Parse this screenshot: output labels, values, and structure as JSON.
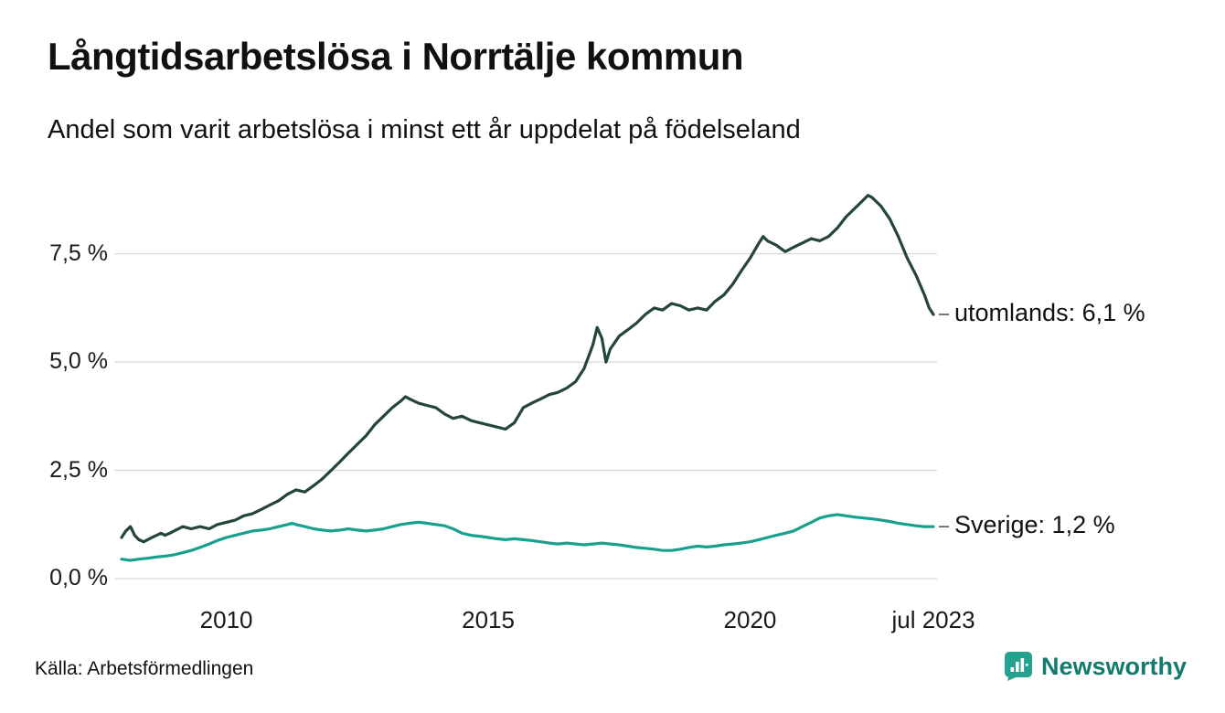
{
  "source": "Källa: Arbetsförmedlingen",
  "brand": {
    "name": "Newsworthy",
    "icon_color": "#25a190",
    "text_color": "#137a6d"
  },
  "chart_data": {
    "type": "line",
    "title": "Långtidsarbetslösa i Norrtälje kommun",
    "subtitle": "Andel som varit arbetslösa i minst ett år uppdelat på födelseland",
    "xlabel": "",
    "ylabel": "",
    "grid": "horizontal",
    "gridline_color": "#d9d9d9",
    "x_range": [
      2008.0,
      2023.5
    ],
    "y_range": [
      0,
      9.35
    ],
    "y_ticks": [
      {
        "label": "0,0 %",
        "value": 0
      },
      {
        "label": "2,5 %",
        "value": 2.5
      },
      {
        "label": "5,0 %",
        "value": 5.0
      },
      {
        "label": "7,5 %",
        "value": 7.5
      }
    ],
    "x_ticks": [
      {
        "label": "2010",
        "value": 2010
      },
      {
        "label": "2015",
        "value": 2015
      },
      {
        "label": "2020",
        "value": 2020
      },
      {
        "label": "jul 2023",
        "value": 2023.5
      }
    ],
    "legend_position": "end-of-line-labels",
    "series": [
      {
        "name": "utomlands",
        "label": "utomlands: 6,1 %",
        "end_value": 6.1,
        "color": "#24453e",
        "points": [
          [
            2008.0,
            0.95
          ],
          [
            2008.08,
            1.1
          ],
          [
            2008.17,
            1.2
          ],
          [
            2008.25,
            1.0
          ],
          [
            2008.33,
            0.9
          ],
          [
            2008.42,
            0.85
          ],
          [
            2008.5,
            0.9
          ],
          [
            2008.58,
            0.95
          ],
          [
            2008.67,
            1.0
          ],
          [
            2008.75,
            1.05
          ],
          [
            2008.83,
            1.0
          ],
          [
            2008.92,
            1.05
          ],
          [
            2009.0,
            1.1
          ],
          [
            2009.17,
            1.2
          ],
          [
            2009.33,
            1.15
          ],
          [
            2009.5,
            1.2
          ],
          [
            2009.67,
            1.15
          ],
          [
            2009.83,
            1.25
          ],
          [
            2010.0,
            1.3
          ],
          [
            2010.17,
            1.35
          ],
          [
            2010.33,
            1.45
          ],
          [
            2010.5,
            1.5
          ],
          [
            2010.67,
            1.6
          ],
          [
            2010.83,
            1.7
          ],
          [
            2011.0,
            1.8
          ],
          [
            2011.17,
            1.95
          ],
          [
            2011.33,
            2.05
          ],
          [
            2011.5,
            2.0
          ],
          [
            2011.67,
            2.15
          ],
          [
            2011.83,
            2.3
          ],
          [
            2012.0,
            2.5
          ],
          [
            2012.17,
            2.7
          ],
          [
            2012.33,
            2.9
          ],
          [
            2012.5,
            3.1
          ],
          [
            2012.67,
            3.3
          ],
          [
            2012.83,
            3.55
          ],
          [
            2013.0,
            3.75
          ],
          [
            2013.17,
            3.95
          ],
          [
            2013.33,
            4.1
          ],
          [
            2013.42,
            4.2
          ],
          [
            2013.5,
            4.15
          ],
          [
            2013.67,
            4.05
          ],
          [
            2013.83,
            4.0
          ],
          [
            2014.0,
            3.95
          ],
          [
            2014.17,
            3.8
          ],
          [
            2014.33,
            3.7
          ],
          [
            2014.5,
            3.75
          ],
          [
            2014.67,
            3.65
          ],
          [
            2014.83,
            3.6
          ],
          [
            2015.0,
            3.55
          ],
          [
            2015.17,
            3.5
          ],
          [
            2015.33,
            3.45
          ],
          [
            2015.5,
            3.6
          ],
          [
            2015.67,
            3.95
          ],
          [
            2015.83,
            4.05
          ],
          [
            2016.0,
            4.15
          ],
          [
            2016.17,
            4.25
          ],
          [
            2016.33,
            4.3
          ],
          [
            2016.5,
            4.4
          ],
          [
            2016.67,
            4.55
          ],
          [
            2016.83,
            4.85
          ],
          [
            2017.0,
            5.4
          ],
          [
            2017.08,
            5.8
          ],
          [
            2017.17,
            5.55
          ],
          [
            2017.25,
            5.0
          ],
          [
            2017.33,
            5.3
          ],
          [
            2017.5,
            5.6
          ],
          [
            2017.67,
            5.75
          ],
          [
            2017.83,
            5.9
          ],
          [
            2018.0,
            6.1
          ],
          [
            2018.17,
            6.25
          ],
          [
            2018.33,
            6.2
          ],
          [
            2018.5,
            6.35
          ],
          [
            2018.67,
            6.3
          ],
          [
            2018.83,
            6.2
          ],
          [
            2019.0,
            6.25
          ],
          [
            2019.17,
            6.2
          ],
          [
            2019.33,
            6.4
          ],
          [
            2019.5,
            6.55
          ],
          [
            2019.67,
            6.8
          ],
          [
            2019.83,
            7.1
          ],
          [
            2020.0,
            7.4
          ],
          [
            2020.17,
            7.75
          ],
          [
            2020.25,
            7.9
          ],
          [
            2020.33,
            7.8
          ],
          [
            2020.5,
            7.7
          ],
          [
            2020.67,
            7.55
          ],
          [
            2020.83,
            7.65
          ],
          [
            2021.0,
            7.75
          ],
          [
            2021.17,
            7.85
          ],
          [
            2021.33,
            7.8
          ],
          [
            2021.5,
            7.9
          ],
          [
            2021.67,
            8.1
          ],
          [
            2021.83,
            8.35
          ],
          [
            2022.0,
            8.55
          ],
          [
            2022.17,
            8.75
          ],
          [
            2022.25,
            8.85
          ],
          [
            2022.33,
            8.8
          ],
          [
            2022.5,
            8.6
          ],
          [
            2022.67,
            8.3
          ],
          [
            2022.83,
            7.9
          ],
          [
            2023.0,
            7.4
          ],
          [
            2023.17,
            7.0
          ],
          [
            2023.33,
            6.55
          ],
          [
            2023.42,
            6.25
          ],
          [
            2023.5,
            6.1
          ]
        ]
      },
      {
        "name": "Sverige",
        "label": "Sverige: 1,2 %",
        "end_value": 1.2,
        "color": "#17a08e",
        "points": [
          [
            2008.0,
            0.45
          ],
          [
            2008.17,
            0.42
          ],
          [
            2008.33,
            0.45
          ],
          [
            2008.5,
            0.47
          ],
          [
            2008.67,
            0.5
          ],
          [
            2008.83,
            0.52
          ],
          [
            2009.0,
            0.55
          ],
          [
            2009.17,
            0.6
          ],
          [
            2009.33,
            0.65
          ],
          [
            2009.5,
            0.72
          ],
          [
            2009.67,
            0.8
          ],
          [
            2009.83,
            0.88
          ],
          [
            2010.0,
            0.95
          ],
          [
            2010.17,
            1.0
          ],
          [
            2010.33,
            1.05
          ],
          [
            2010.5,
            1.1
          ],
          [
            2010.67,
            1.12
          ],
          [
            2010.83,
            1.15
          ],
          [
            2011.0,
            1.2
          ],
          [
            2011.17,
            1.25
          ],
          [
            2011.25,
            1.28
          ],
          [
            2011.33,
            1.25
          ],
          [
            2011.5,
            1.2
          ],
          [
            2011.67,
            1.15
          ],
          [
            2011.83,
            1.12
          ],
          [
            2012.0,
            1.1
          ],
          [
            2012.17,
            1.12
          ],
          [
            2012.33,
            1.15
          ],
          [
            2012.5,
            1.12
          ],
          [
            2012.67,
            1.1
          ],
          [
            2012.83,
            1.12
          ],
          [
            2013.0,
            1.15
          ],
          [
            2013.17,
            1.2
          ],
          [
            2013.33,
            1.25
          ],
          [
            2013.5,
            1.28
          ],
          [
            2013.67,
            1.3
          ],
          [
            2013.83,
            1.28
          ],
          [
            2014.0,
            1.25
          ],
          [
            2014.17,
            1.22
          ],
          [
            2014.33,
            1.15
          ],
          [
            2014.5,
            1.05
          ],
          [
            2014.67,
            1.0
          ],
          [
            2014.83,
            0.98
          ],
          [
            2015.0,
            0.95
          ],
          [
            2015.17,
            0.92
          ],
          [
            2015.33,
            0.9
          ],
          [
            2015.5,
            0.92
          ],
          [
            2015.67,
            0.9
          ],
          [
            2015.83,
            0.88
          ],
          [
            2016.0,
            0.85
          ],
          [
            2016.17,
            0.82
          ],
          [
            2016.33,
            0.8
          ],
          [
            2016.5,
            0.82
          ],
          [
            2016.67,
            0.8
          ],
          [
            2016.83,
            0.78
          ],
          [
            2017.0,
            0.8
          ],
          [
            2017.17,
            0.82
          ],
          [
            2017.33,
            0.8
          ],
          [
            2017.5,
            0.78
          ],
          [
            2017.67,
            0.75
          ],
          [
            2017.83,
            0.72
          ],
          [
            2018.0,
            0.7
          ],
          [
            2018.17,
            0.68
          ],
          [
            2018.33,
            0.65
          ],
          [
            2018.5,
            0.65
          ],
          [
            2018.67,
            0.68
          ],
          [
            2018.83,
            0.72
          ],
          [
            2019.0,
            0.75
          ],
          [
            2019.17,
            0.73
          ],
          [
            2019.33,
            0.75
          ],
          [
            2019.5,
            0.78
          ],
          [
            2019.67,
            0.8
          ],
          [
            2019.83,
            0.82
          ],
          [
            2020.0,
            0.85
          ],
          [
            2020.17,
            0.9
          ],
          [
            2020.33,
            0.95
          ],
          [
            2020.5,
            1.0
          ],
          [
            2020.67,
            1.05
          ],
          [
            2020.83,
            1.1
          ],
          [
            2021.0,
            1.2
          ],
          [
            2021.17,
            1.3
          ],
          [
            2021.33,
            1.4
          ],
          [
            2021.5,
            1.45
          ],
          [
            2021.67,
            1.48
          ],
          [
            2021.83,
            1.45
          ],
          [
            2022.0,
            1.42
          ],
          [
            2022.17,
            1.4
          ],
          [
            2022.33,
            1.38
          ],
          [
            2022.5,
            1.35
          ],
          [
            2022.67,
            1.32
          ],
          [
            2022.83,
            1.28
          ],
          [
            2023.0,
            1.25
          ],
          [
            2023.17,
            1.22
          ],
          [
            2023.33,
            1.2
          ],
          [
            2023.5,
            1.2
          ]
        ]
      }
    ]
  }
}
